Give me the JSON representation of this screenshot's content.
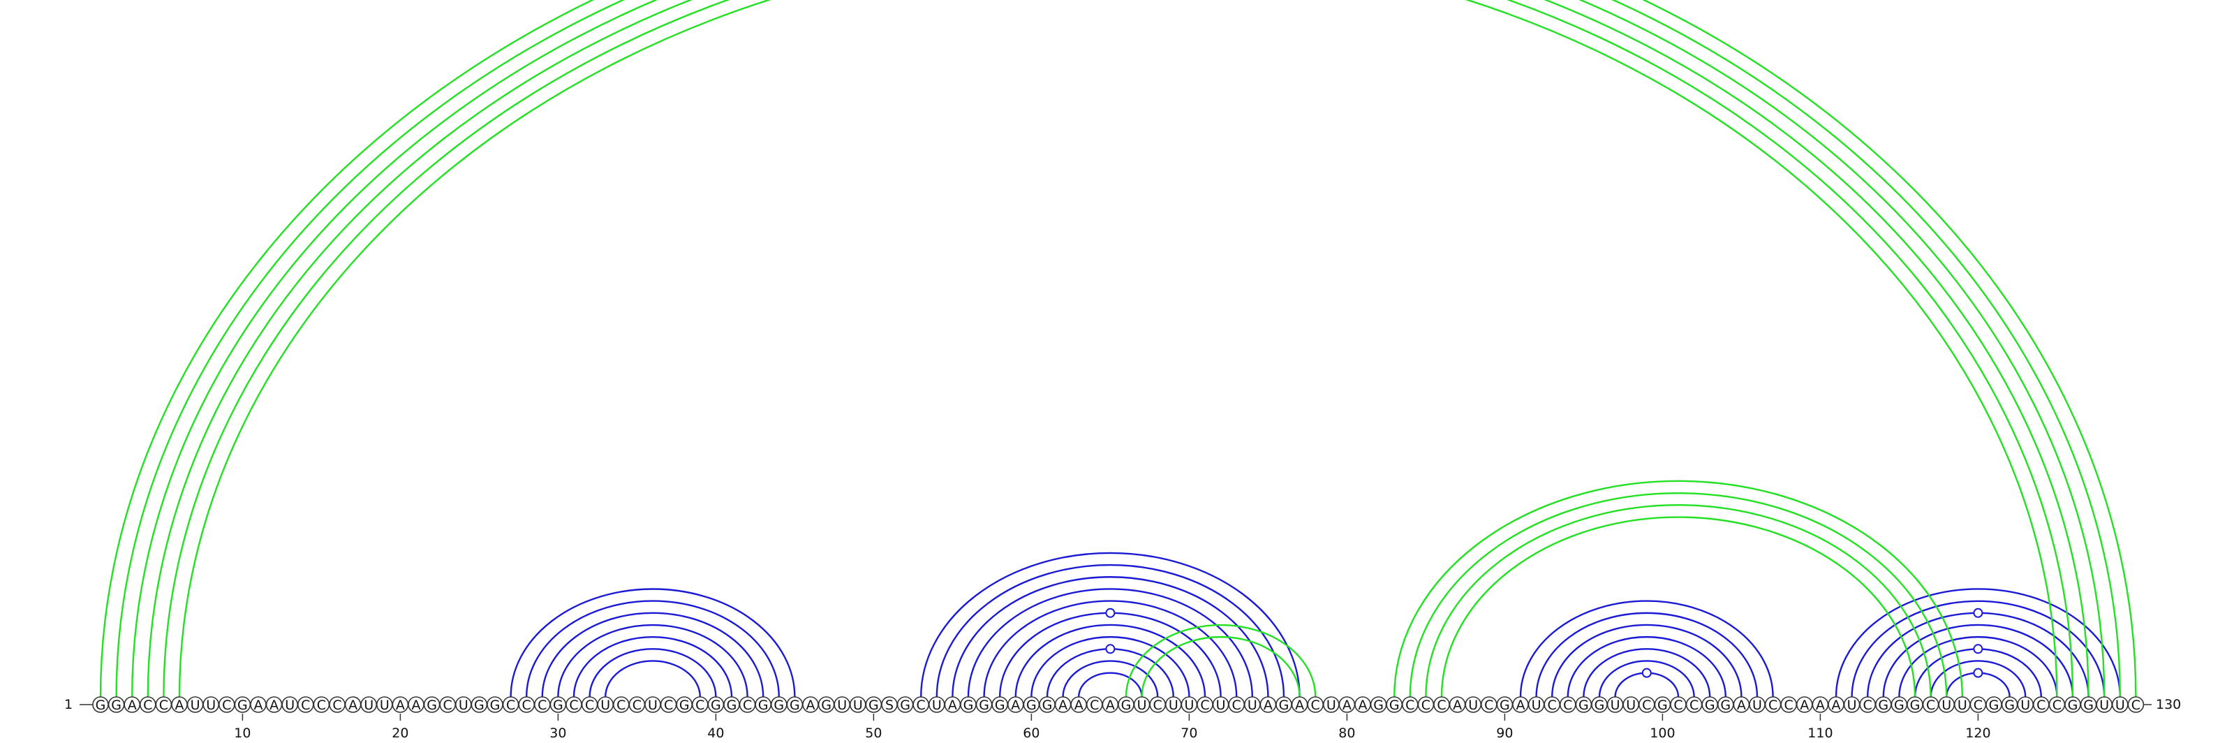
{
  "sequence": "GGACCAUUCGAAUCCCAUUAAGCUGGCCCGCCUCCUCGCGGCGGGAGUUGSGCUAGGGAGGAACAGUCUUCUCUAGACUAAGGCCCAUCGAUCCGGUUCGCCGGAUCCAAAUCGGGCUUCGGUCCGGUUC",
  "start_label": "1",
  "end_label": "130",
  "tick_labels": [
    "10",
    "20",
    "30",
    "40",
    "50",
    "60",
    "70",
    "80",
    "90",
    "100",
    "110",
    "120"
  ],
  "colors": {
    "nested_arc": "#1a1ad6",
    "pseudoknot_arc": "#22e022"
  },
  "arcs": [
    {
      "i": 27,
      "j": 45,
      "color": "blue"
    },
    {
      "i": 28,
      "j": 44,
      "color": "blue"
    },
    {
      "i": 29,
      "j": 43,
      "color": "blue"
    },
    {
      "i": 30,
      "j": 42,
      "color": "blue"
    },
    {
      "i": 31,
      "j": 41,
      "color": "blue"
    },
    {
      "i": 32,
      "j": 40,
      "color": "blue"
    },
    {
      "i": 33,
      "j": 39,
      "color": "blue"
    },
    {
      "i": 53,
      "j": 77,
      "color": "blue"
    },
    {
      "i": 54,
      "j": 76,
      "color": "blue"
    },
    {
      "i": 55,
      "j": 75,
      "color": "blue"
    },
    {
      "i": 56,
      "j": 74,
      "color": "blue"
    },
    {
      "i": 57,
      "j": 73,
      "color": "blue"
    },
    {
      "i": 58,
      "j": 72,
      "color": "blue",
      "gu": true
    },
    {
      "i": 59,
      "j": 71,
      "color": "blue"
    },
    {
      "i": 60,
      "j": 70,
      "color": "blue"
    },
    {
      "i": 61,
      "j": 69,
      "color": "blue",
      "gu": true
    },
    {
      "i": 62,
      "j": 68,
      "color": "blue"
    },
    {
      "i": 63,
      "j": 67,
      "color": "blue"
    },
    {
      "i": 91,
      "j": 107,
      "color": "blue"
    },
    {
      "i": 92,
      "j": 106,
      "color": "blue"
    },
    {
      "i": 93,
      "j": 105,
      "color": "blue"
    },
    {
      "i": 94,
      "j": 104,
      "color": "blue"
    },
    {
      "i": 95,
      "j": 103,
      "color": "blue"
    },
    {
      "i": 96,
      "j": 102,
      "color": "blue"
    },
    {
      "i": 97,
      "j": 101,
      "color": "blue",
      "gu": true
    },
    {
      "i": 111,
      "j": 129,
      "color": "blue"
    },
    {
      "i": 112,
      "j": 128,
      "color": "blue"
    },
    {
      "i": 113,
      "j": 127,
      "color": "blue",
      "gu": true
    },
    {
      "i": 114,
      "j": 126,
      "color": "blue"
    },
    {
      "i": 115,
      "j": 125,
      "color": "blue"
    },
    {
      "i": 116,
      "j": 124,
      "color": "blue",
      "gu": true
    },
    {
      "i": 117,
      "j": 123,
      "color": "blue"
    },
    {
      "i": 118,
      "j": 122,
      "color": "blue",
      "gu": true
    },
    {
      "i": 66,
      "j": 78,
      "color": "green"
    },
    {
      "i": 67,
      "j": 77,
      "color": "green"
    },
    {
      "i": 83,
      "j": 119,
      "color": "green"
    },
    {
      "i": 84,
      "j": 118,
      "color": "green"
    },
    {
      "i": 85,
      "j": 117,
      "color": "green"
    },
    {
      "i": 86,
      "j": 116,
      "color": "green"
    },
    {
      "i": 1,
      "j": 130,
      "color": "green",
      "gu": true
    },
    {
      "i": 2,
      "j": 129,
      "color": "green"
    },
    {
      "i": 3,
      "j": 128,
      "color": "green"
    },
    {
      "i": 4,
      "j": 127,
      "color": "green"
    },
    {
      "i": 5,
      "j": 126,
      "color": "green"
    },
    {
      "i": 6,
      "j": 125,
      "color": "green"
    }
  ]
}
